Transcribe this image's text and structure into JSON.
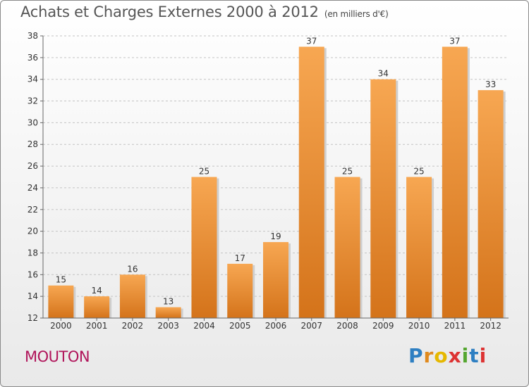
{
  "header": {
    "title": "Achats et Charges Externes 2000 à 2012",
    "subtitle": "(en milliers d'€)"
  },
  "footer": {
    "town": "MOUTON",
    "logo_letters": [
      "P",
      "r",
      "o",
      "x",
      "i",
      "t",
      "i"
    ],
    "logo_colors": [
      "#2e7fc2",
      "#e08a1e",
      "#e6b800",
      "#d33",
      "#55a630",
      "#2e7fc2",
      "#d33"
    ]
  },
  "chart_data": {
    "type": "bar",
    "categories": [
      "2000",
      "2001",
      "2002",
      "2003",
      "2004",
      "2005",
      "2006",
      "2007",
      "2008",
      "2009",
      "2010",
      "2011",
      "2012"
    ],
    "values": [
      15,
      14,
      16,
      13,
      25,
      17,
      19,
      37,
      25,
      34,
      25,
      37,
      33
    ],
    "ylim": [
      12,
      38
    ],
    "yticks": [
      12,
      14,
      16,
      18,
      20,
      22,
      24,
      26,
      28,
      30,
      32,
      34,
      36,
      38
    ],
    "grid": "dashed horizontal",
    "bar_color_top": "#f7a752",
    "bar_color_bottom": "#d4731a"
  }
}
